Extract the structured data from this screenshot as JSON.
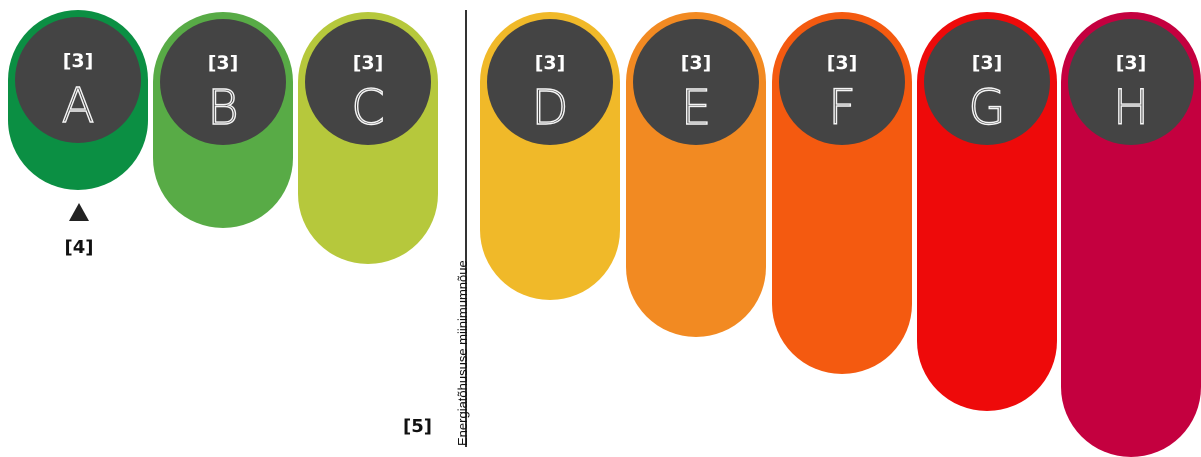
{
  "classes": [
    {
      "code": "[3]",
      "letter": "A",
      "color": "#0b8f43"
    },
    {
      "code": "[3]",
      "letter": "B",
      "color": "#58ab46"
    },
    {
      "code": "[3]",
      "letter": "C",
      "color": "#b6c83c"
    },
    {
      "code": "[3]",
      "letter": "D",
      "color": "#f0b929"
    },
    {
      "code": "[3]",
      "letter": "E",
      "color": "#f28a22"
    },
    {
      "code": "[3]",
      "letter": "F",
      "color": "#f45a10"
    },
    {
      "code": "[3]",
      "letter": "G",
      "color": "#ee0a0a"
    },
    {
      "code": "[3]",
      "letter": "H",
      "color": "#c4003f"
    }
  ],
  "circle_color": "#444444",
  "marker": {
    "code": "[4]",
    "icon": "triangle-up-icon"
  },
  "divider": {
    "label": "Energiatõhususe miinimumnõue",
    "code": "[5]"
  }
}
